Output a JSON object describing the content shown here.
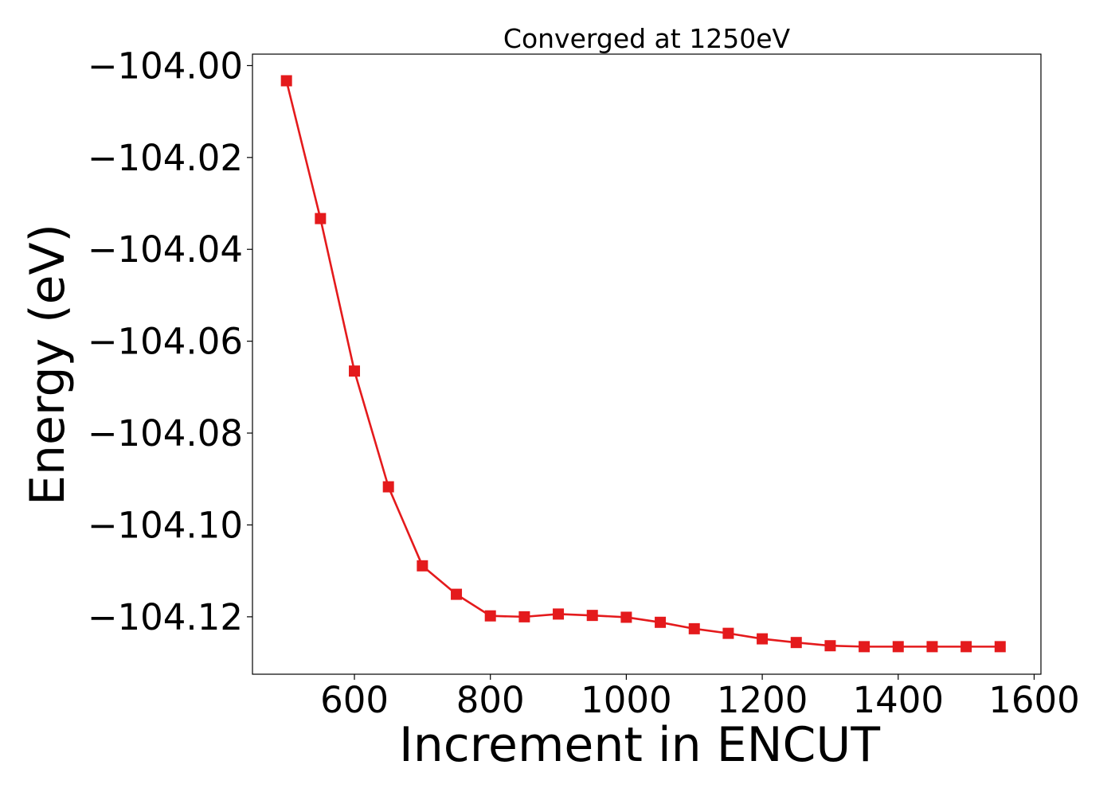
{
  "chart_data": {
    "type": "line",
    "title": "Converged at 1250eV",
    "xlabel": "Increment in ENCUT",
    "ylabel": "Energy (eV)",
    "xlim": [
      450,
      1610
    ],
    "ylim": [
      -104.1325,
      -103.9975
    ],
    "xticks": [
      600,
      800,
      1000,
      1200,
      1400,
      1600
    ],
    "xtick_labels": [
      "600",
      "800",
      "1000",
      "1200",
      "1400",
      "1600"
    ],
    "yticks": [
      -104.0,
      -104.02,
      -104.04,
      -104.06,
      -104.08,
      -104.1,
      -104.12
    ],
    "ytick_labels": [
      "−104.00",
      "−104.02",
      "−104.04",
      "−104.06",
      "−104.08",
      "−104.10",
      "−104.12"
    ],
    "grid": false,
    "legend": false,
    "series": [
      {
        "color": "#e41a1c",
        "marker": "square",
        "x": [
          500,
          550,
          600,
          650,
          700,
          750,
          800,
          850,
          900,
          950,
          1000,
          1050,
          1100,
          1150,
          1200,
          1250,
          1300,
          1350,
          1400,
          1450,
          1500,
          1550
        ],
        "y": [
          -104.0033,
          -104.0333,
          -104.0665,
          -104.0917,
          -104.1089,
          -104.1151,
          -104.1198,
          -104.12,
          -104.1194,
          -104.1197,
          -104.1201,
          -104.1212,
          -104.1226,
          -104.1236,
          -104.1248,
          -104.1256,
          -104.1263,
          -104.1265,
          -104.1265,
          -104.1265,
          -104.1265,
          -104.1265
        ]
      }
    ]
  }
}
